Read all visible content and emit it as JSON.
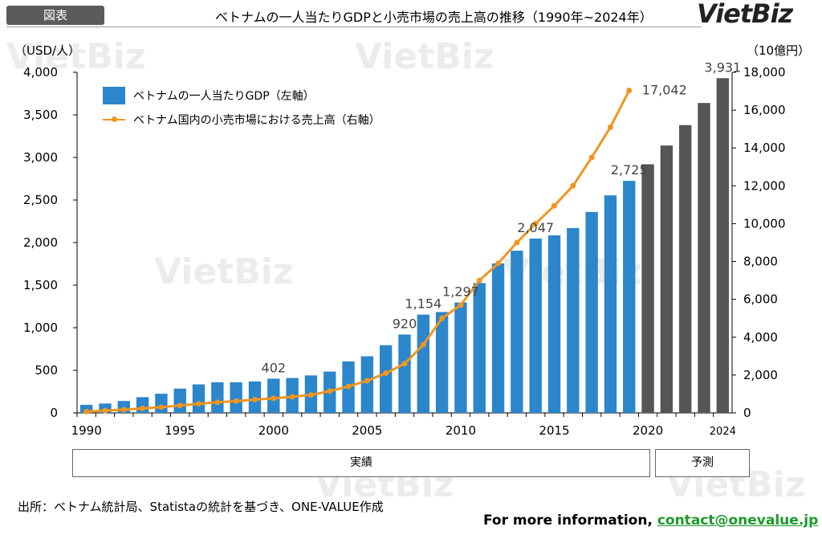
{
  "header": {
    "badge": "図表",
    "title": "ベトナムの一人当たりGDPと小売市場の売上高の推移（1990年~2024年）",
    "logo": "VietBiz"
  },
  "watermark_text": "VietBiz",
  "footer": {
    "source": "出所：ベトナム統計局、Statistaの統計を基づき、ONE-VALUE作成",
    "contact_prefix": "For more information,",
    "contact_email": "contact@onevalue.jp"
  },
  "period_boxes": {
    "actual": "実績",
    "forecast": "予測"
  },
  "chart_data": {
    "type": "bar",
    "years": [
      1990,
      1991,
      1992,
      1993,
      1994,
      1995,
      1996,
      1997,
      1998,
      1999,
      2000,
      2001,
      2002,
      2003,
      2004,
      2005,
      2006,
      2007,
      2008,
      2009,
      2010,
      2011,
      2012,
      2013,
      2014,
      2015,
      2016,
      2017,
      2018,
      2019,
      2020,
      2021,
      2022,
      2023,
      2024
    ],
    "x_tick_labels": [
      "1990",
      "1995",
      "2000",
      "2005",
      "2010",
      "2015",
      "2020",
      "2024"
    ],
    "left_axis": {
      "label": "（USD/人）",
      "ylim": [
        0,
        4000
      ],
      "ticks": [
        "0",
        "500",
        "1,000",
        "1,500",
        "2,000",
        "2,500",
        "3,000",
        "3,500",
        "4,000"
      ]
    },
    "right_axis": {
      "label": "（10億円）",
      "ylim": [
        0,
        18000
      ],
      "ticks": [
        "0",
        "2,000",
        "4,000",
        "6,000",
        "8,000",
        "10,000",
        "12,000",
        "14,000",
        "16,000",
        "18,000"
      ]
    },
    "series": [
      {
        "name": "ベトナムの一人当たりGDP（左軸）",
        "type": "bar",
        "axis": "left",
        "color_actual": "#2b86cc",
        "color_forecast": "#555555",
        "forecast_from": 2020,
        "values": [
          95,
          110,
          140,
          185,
          225,
          285,
          335,
          360,
          360,
          370,
          402,
          410,
          440,
          485,
          605,
          665,
          795,
          920,
          1154,
          1185,
          1297,
          1525,
          1755,
          1905,
          2047,
          2085,
          2170,
          2360,
          2555,
          2725,
          2920,
          3140,
          3380,
          3640,
          3931
        ]
      },
      {
        "name": "ベトナム国内の小売市場における売上高（右軸）",
        "type": "line",
        "axis": "right",
        "color": "#f0961f",
        "x": [
          1990,
          1991,
          1992,
          1993,
          1994,
          1995,
          1996,
          1997,
          1998,
          1999,
          2000,
          2001,
          2002,
          2003,
          2004,
          2005,
          2006,
          2007,
          2008,
          2009,
          2010,
          2011,
          2012,
          2013,
          2014,
          2015,
          2016,
          2017,
          2018,
          2019
        ],
        "values": [
          70,
          120,
          170,
          240,
          300,
          390,
          480,
          560,
          620,
          700,
          770,
          850,
          950,
          1150,
          1400,
          1700,
          2100,
          2600,
          3600,
          5000,
          5700,
          7000,
          7900,
          9000,
          10000,
          10950,
          12000,
          13500,
          15100,
          17042
        ]
      }
    ],
    "data_labels": [
      {
        "year": 2000,
        "text": "402",
        "series": "bar"
      },
      {
        "year": 2007,
        "text": "920",
        "series": "bar"
      },
      {
        "year": 2008,
        "text": "1,154",
        "series": "bar"
      },
      {
        "year": 2010,
        "text": "1,297",
        "series": "bar"
      },
      {
        "year": 2014,
        "text": "2,047",
        "series": "bar"
      },
      {
        "year": 2019,
        "text": "2,725",
        "series": "bar"
      },
      {
        "year": 2024,
        "text": "3,931",
        "series": "bar"
      },
      {
        "year": 2019,
        "text": "17,042",
        "series": "line"
      }
    ]
  }
}
